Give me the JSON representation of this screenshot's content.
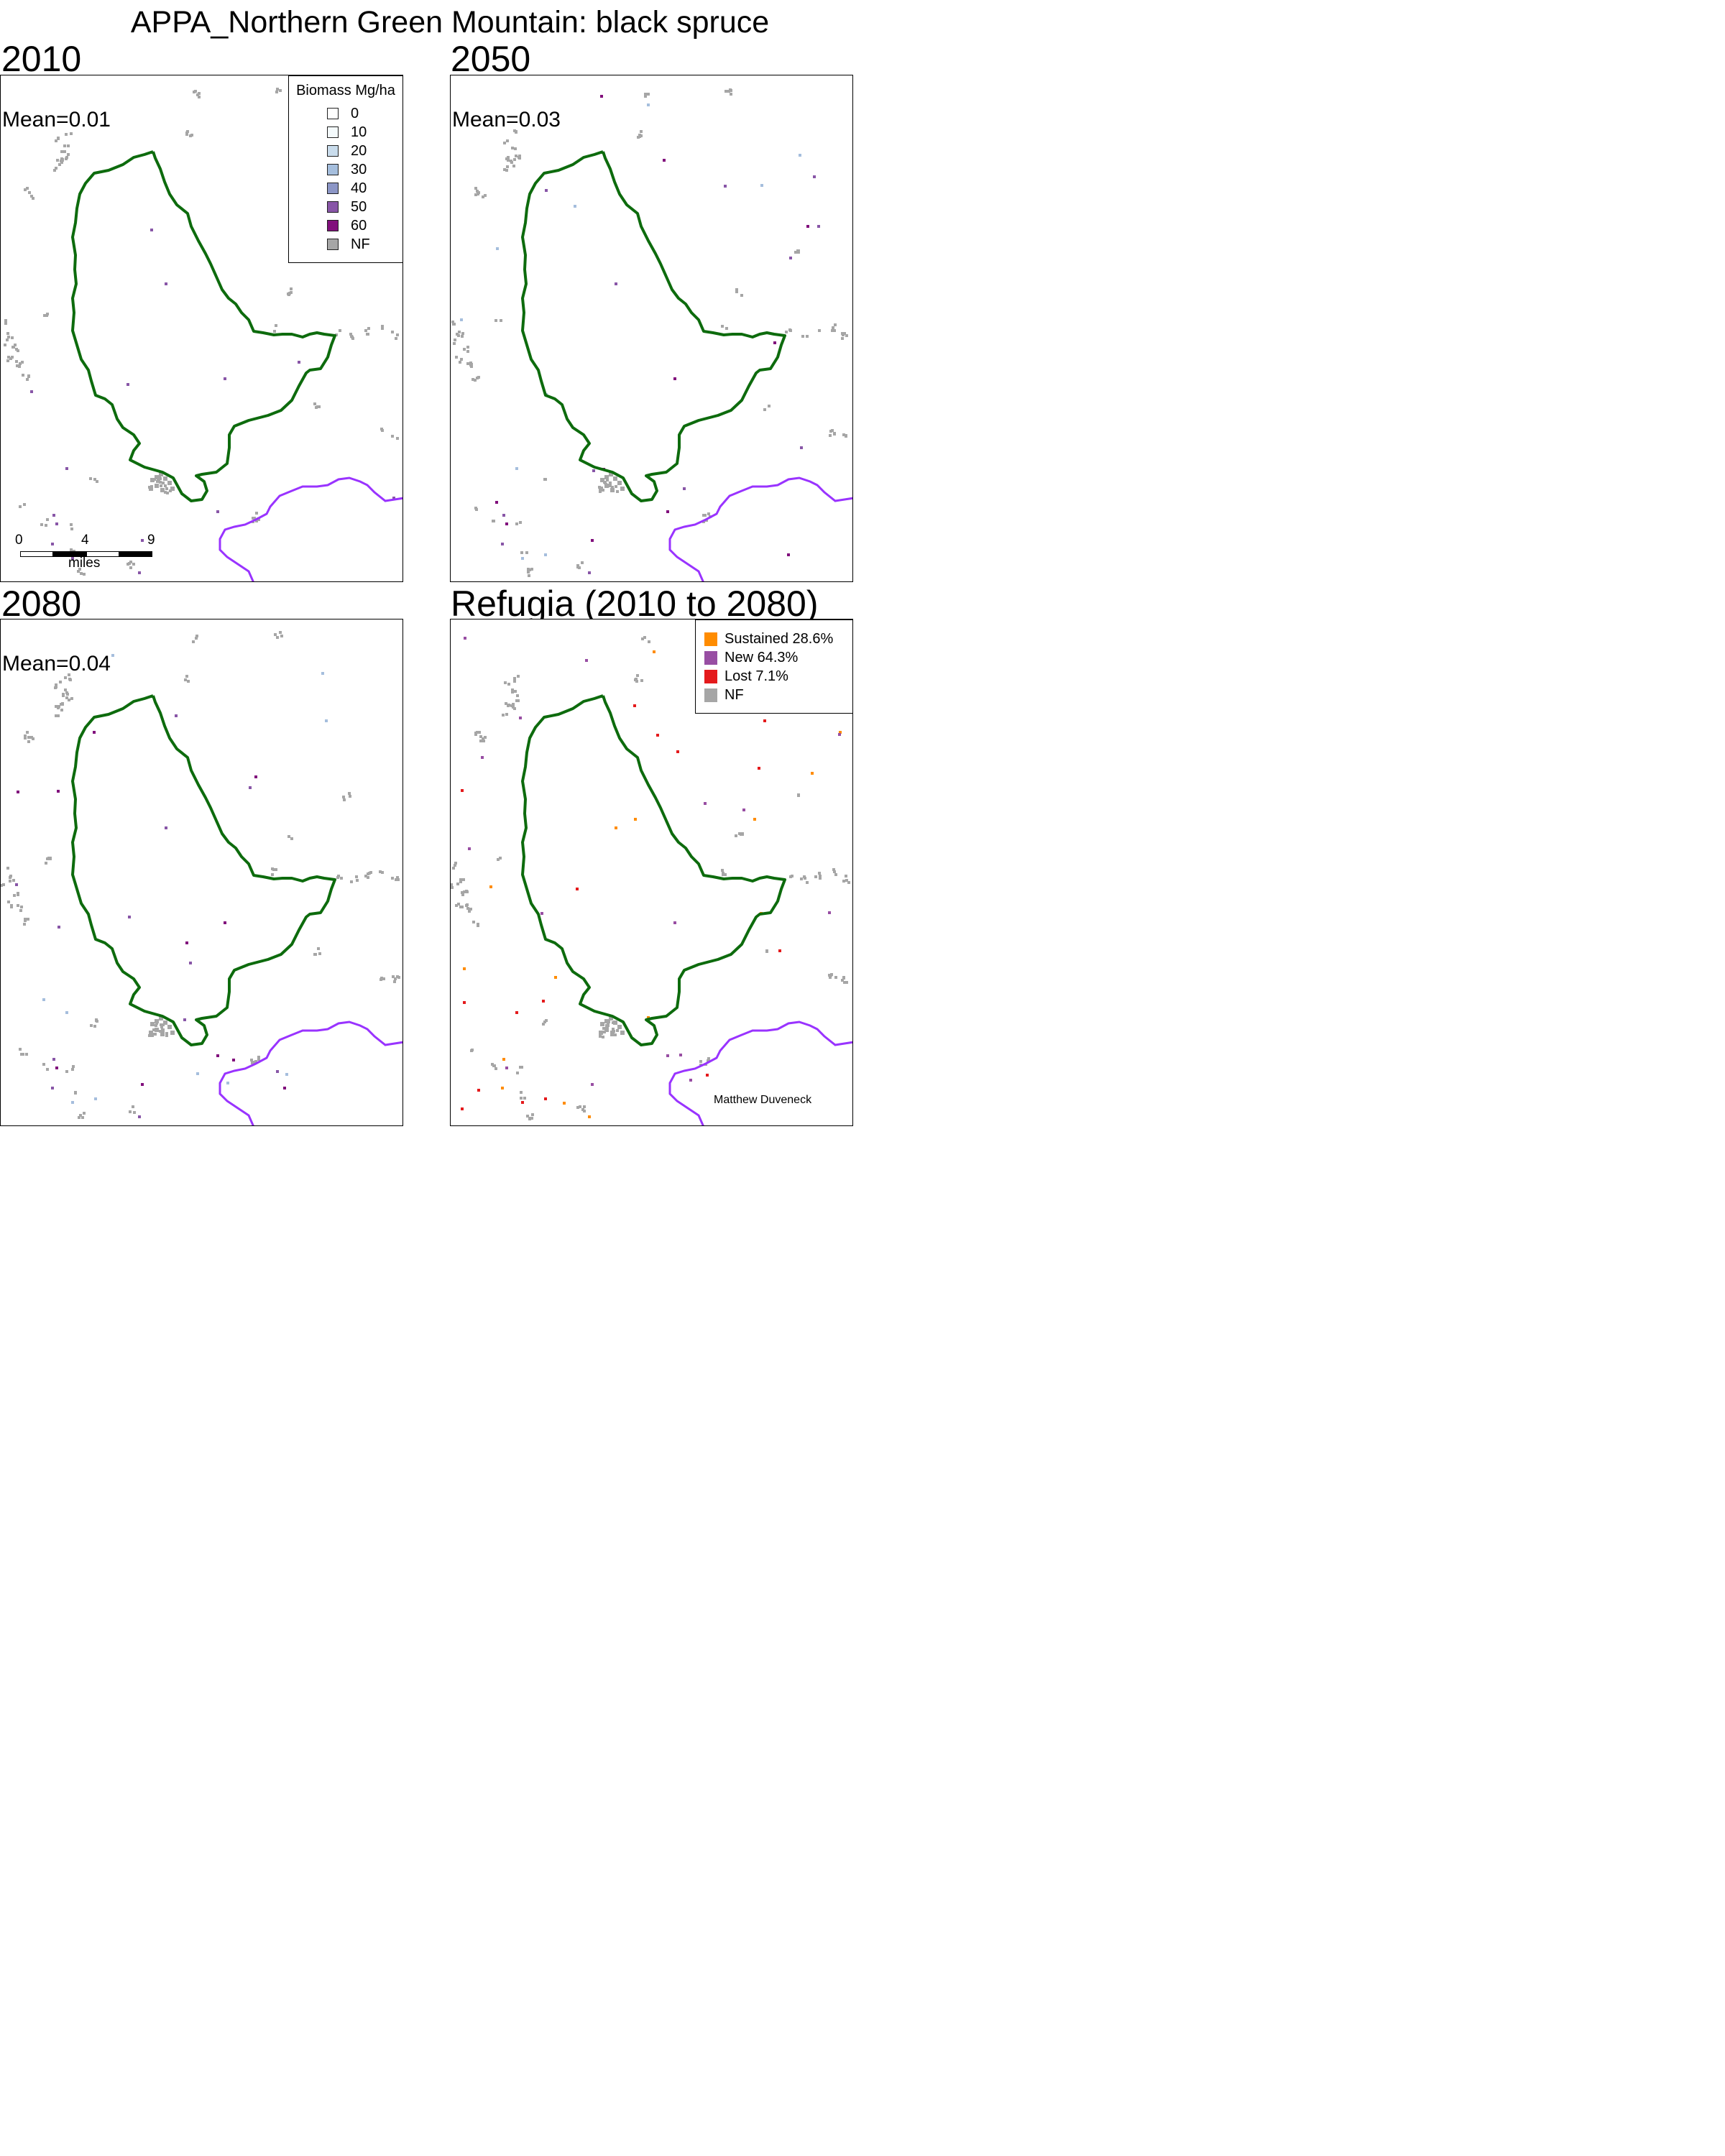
{
  "title": "APPA_Northern Green Mountain: black spruce",
  "panels": [
    {
      "id": "p2010",
      "label": "2010",
      "mean": "Mean=0.01"
    },
    {
      "id": "p2050",
      "label": "2050",
      "mean": "Mean=0.03"
    },
    {
      "id": "p2080",
      "label": "2080",
      "mean": "Mean=0.04"
    },
    {
      "id": "prefugia",
      "label": "Refugia (2010 to 2080)"
    }
  ],
  "biomass_legend": {
    "title": "Biomass Mg/ha",
    "items": [
      {
        "label": "0",
        "color": "#ffffff"
      },
      {
        "label": "10",
        "color": "#f4fafc"
      },
      {
        "label": "20",
        "color": "#c9dcec"
      },
      {
        "label": "30",
        "color": "#a5bedd"
      },
      {
        "label": "40",
        "color": "#8c96c6"
      },
      {
        "label": "50",
        "color": "#8856a7"
      },
      {
        "label": "60",
        "color": "#810f7c"
      },
      {
        "label": "NF",
        "color": "#a6a6a6"
      }
    ]
  },
  "refugia_legend": {
    "items": [
      {
        "label": "Sustained 28.6%",
        "color": "#ff8c00",
        "percent": 28.6
      },
      {
        "label": "New 64.3%",
        "color": "#984ea3",
        "percent": 64.3
      },
      {
        "label": "Lost 7.1%",
        "color": "#e41a1c",
        "percent": 7.1
      },
      {
        "label": "NF",
        "color": "#a6a6a6"
      }
    ]
  },
  "scale_bar": {
    "ticks": [
      "0",
      "4",
      "9"
    ],
    "unit": "miles"
  },
  "credit": "Matthew Duveneck",
  "colors": {
    "boundary_green": "#0d6b0d",
    "boundary_purple": "#9933ff",
    "nonforest": "#a6a6a6"
  }
}
